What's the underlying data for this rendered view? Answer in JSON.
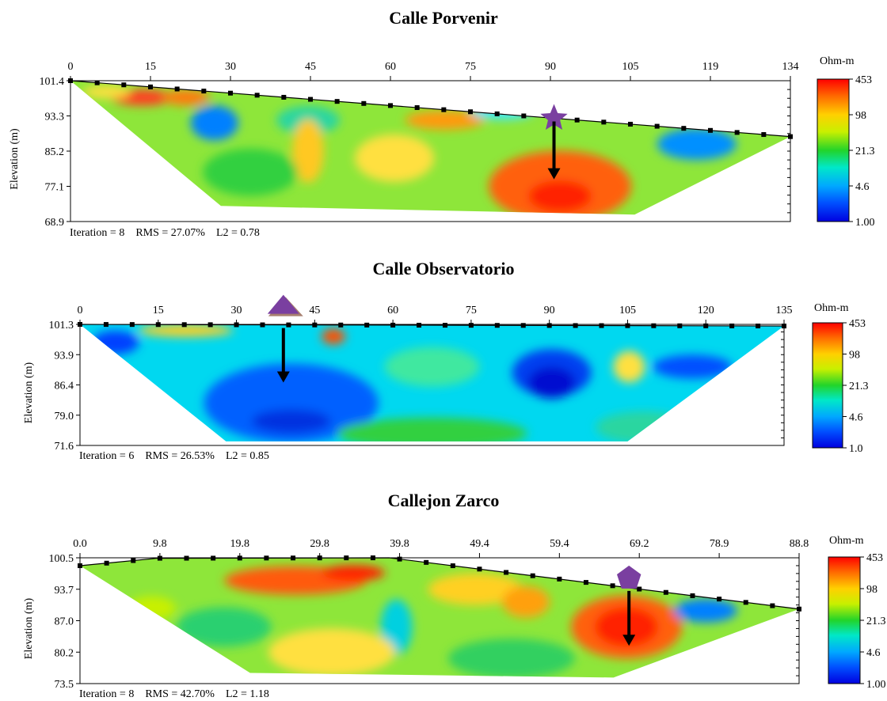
{
  "chart_data": [
    {
      "type": "heatmap",
      "title": "Calle Porvenir",
      "ylabel": "Elevation (m)",
      "x_ticks": [
        "0",
        "15",
        "30",
        "45",
        "60",
        "75",
        "90",
        "105",
        "119",
        "134"
      ],
      "y_ticks": [
        "101.4",
        "93.3",
        "85.2",
        "77.1",
        "68.9"
      ],
      "xlim": [
        0,
        134
      ],
      "ylim": [
        68.9,
        101.4
      ],
      "colorbar": {
        "unit": "Ohm-m",
        "labels": [
          "453",
          "98",
          "21.3",
          "4.6",
          "1.00"
        ]
      },
      "stats": {
        "iteration": "Iteration = 8",
        "rms": "RMS = 27.07%",
        "l2": "L2 = 0.78"
      },
      "marker": {
        "shape": "star",
        "x": 90,
        "color": "#7a3fa0"
      },
      "surface": [
        [
          0,
          101.4
        ],
        [
          134,
          88.5
        ]
      ],
      "bottom_extent": [
        [
          28,
          72.5
        ],
        [
          105,
          70.5
        ]
      ]
    },
    {
      "type": "heatmap",
      "title": "Calle Observatorio",
      "ylabel": "Elevation (m)",
      "x_ticks": [
        "0",
        "15",
        "30",
        "45",
        "60",
        "75",
        "90",
        "105",
        "120",
        "135"
      ],
      "y_ticks": [
        "101.3",
        "93.9",
        "86.4",
        "79.0",
        "71.6"
      ],
      "xlim": [
        0,
        135
      ],
      "ylim": [
        71.6,
        101.3
      ],
      "colorbar": {
        "unit": "Ohm-m",
        "labels": [
          "453",
          "98",
          "21.3",
          "4.6",
          "1.0"
        ]
      },
      "stats": {
        "iteration": "Iteration = 6",
        "rms": "RMS = 26.53%",
        "l2": "L2 = 0.85"
      },
      "marker": {
        "shape": "triangle",
        "x": 39,
        "color": "#7a3fa0"
      },
      "surface": [
        [
          0,
          101.3
        ],
        [
          135,
          100.9
        ]
      ],
      "bottom_extent": [
        [
          28,
          72.6
        ],
        [
          105,
          72.6
        ]
      ]
    },
    {
      "type": "heatmap",
      "title": "Callejon Zarco",
      "ylabel": "Elevation (m)",
      "x_ticks": [
        "0.0",
        "9.8",
        "19.8",
        "29.8",
        "39.8",
        "49.4",
        "59.4",
        "69.2",
        "78.9",
        "88.8"
      ],
      "y_ticks": [
        "100.5",
        "93.7",
        "87.0",
        "80.2",
        "73.5"
      ],
      "xlim": [
        0,
        93
      ],
      "ylim": [
        73.5,
        100.5
      ],
      "colorbar": {
        "unit": "Ohm-m",
        "labels": [
          "453",
          "98",
          "21.3",
          "4.6",
          "1.00"
        ]
      },
      "stats": {
        "iteration": "Iteration = 8",
        "rms": "RMS = 42.70%",
        "l2": "L2 = 1.18"
      },
      "marker": {
        "shape": "pentagon",
        "x": 71,
        "color": "#7a3fa0"
      },
      "surface": [
        [
          0,
          98.8
        ],
        [
          10,
          100.4
        ],
        [
          40,
          100.5
        ],
        [
          93,
          89.5
        ]
      ],
      "bottom_extent": [
        [
          22,
          75.8
        ],
        [
          69,
          74.8
        ]
      ]
    }
  ]
}
